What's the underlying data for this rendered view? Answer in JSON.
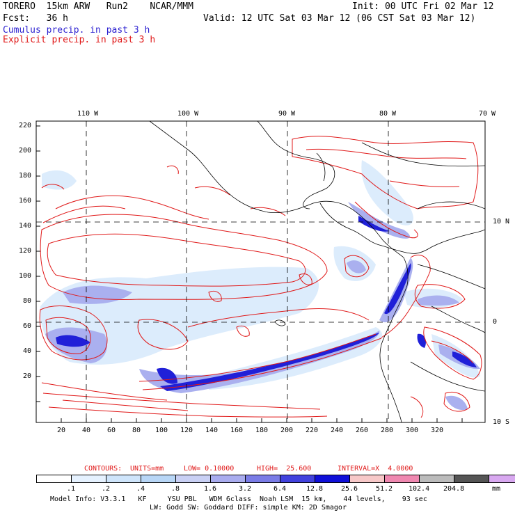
{
  "header": {
    "model": "TORERO  15km ARW   Run2    NCAR/MMM",
    "init": "Init: 00 UTC Fri 02 Mar 12",
    "fcst": "Fcst:   36 h",
    "valid": "Valid: 12 UTC Sat 03 Mar 12 (06 CST Sat 03 Mar 12)",
    "cumulus_label": "Cumulus precip. in past 3 h",
    "explicit_label": "Explicit precip. in past 3 h"
  },
  "map": {
    "top_lon_labels": [
      "110 W",
      "100 W",
      "90 W",
      "80 W",
      "70 W"
    ],
    "right_lat_labels": [
      "10 N",
      "0",
      "10 S"
    ],
    "left_ticks": [
      "220",
      "200",
      "180",
      "160",
      "140",
      "120",
      "100",
      "80",
      "60",
      "40",
      "20"
    ],
    "bottom_ticks": [
      "20",
      "40",
      "60",
      "80",
      "100",
      "120",
      "140",
      "160",
      "180",
      "200",
      "220",
      "240",
      "260",
      "280",
      "300",
      "320"
    ]
  },
  "contours": {
    "label": "CONTOURS:",
    "units": "UNITS=mm",
    "low": "LOW= 0.10000",
    "high": "HIGH=  25.600",
    "interval": "INTERVAL=X  4.0000"
  },
  "colorbar": {
    "labels": [
      ".1",
      ".2",
      ".4",
      ".8",
      "1.6",
      "3.2",
      "6.4",
      "12.8",
      "25.6",
      "51.2",
      "102.4",
      "204.8"
    ],
    "unit": "mm",
    "colors": [
      "#ffffff",
      "#e6f2ff",
      "#cfe5fb",
      "#b8d6f6",
      "#c9d0f4",
      "#a9acee",
      "#7a7ce6",
      "#4242dd",
      "#1010d8",
      "#f7c8c8",
      "#ef88b0",
      "#bbbbbb",
      "#555555",
      "#d8a8f0"
    ]
  },
  "footer": {
    "line1": "Model Info: V3.3.1   KF     YSU PBL   WDM 6class  Noah LSM  15 km,    44 levels,    93 sec",
    "line2": "LW: Godd SW: Goddard DIFF: simple KM: 2D Smagor"
  }
}
